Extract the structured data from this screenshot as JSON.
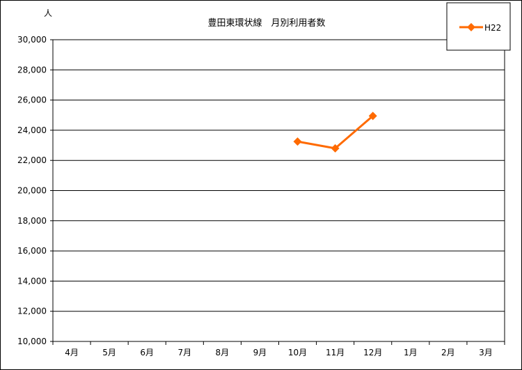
{
  "chart_data": {
    "type": "line",
    "title": "豊田東環状線　月別利用者数",
    "ylabel": "人",
    "xlabel": "",
    "categories": [
      "4月",
      "5月",
      "6月",
      "7月",
      "8月",
      "9月",
      "10月",
      "11月",
      "12月",
      "1月",
      "2月",
      "3月"
    ],
    "ylim": [
      10000,
      30000
    ],
    "ytick_step": 2000,
    "yticks": [
      "10,000",
      "12,000",
      "14,000",
      "16,000",
      "18,000",
      "20,000",
      "22,000",
      "24,000",
      "26,000",
      "28,000",
      "30,000"
    ],
    "grid": true,
    "legend_position": "top-right",
    "series": [
      {
        "name": "H22",
        "color": "#ff6a00",
        "marker": "diamond",
        "values": [
          null,
          null,
          null,
          null,
          null,
          null,
          23250,
          22800,
          24950,
          null,
          null,
          null
        ]
      }
    ]
  }
}
